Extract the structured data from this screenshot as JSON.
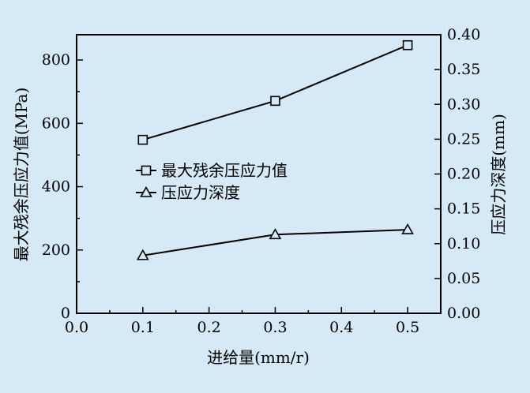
{
  "chart_data": {
    "type": "line",
    "xlabel": "进给量(mm/r)",
    "ylabel_left": "最大残余压应力值(MPa)",
    "ylabel_right": "压应力深度(mm)",
    "xlim": [
      0.0,
      0.55
    ],
    "ylim_left": [
      0,
      880
    ],
    "ylim_right": [
      0.0,
      0.4
    ],
    "x_ticks": [
      "0.0",
      "0.1",
      "0.2",
      "0.3",
      "0.4",
      "0.5"
    ],
    "y_left_ticks": [
      "0",
      "200",
      "400",
      "600",
      "800"
    ],
    "y_right_ticks": [
      "0.00",
      "0.05",
      "0.10",
      "0.15",
      "0.20",
      "0.25",
      "0.30",
      "0.35",
      "0.40"
    ],
    "grid": false,
    "legend_position": "center-left",
    "series": [
      {
        "name": "最大残余压应力值",
        "axis": "left",
        "marker": "square",
        "x": [
          0.1,
          0.3,
          0.5
        ],
        "y": [
          548,
          671,
          847
        ]
      },
      {
        "name": "压应力深度",
        "axis": "right",
        "marker": "triangle",
        "x": [
          0.1,
          0.3,
          0.5
        ],
        "y": [
          0.083,
          0.113,
          0.12
        ]
      }
    ]
  },
  "colors": {
    "background": "#d6e9f6",
    "line": "#000000"
  }
}
